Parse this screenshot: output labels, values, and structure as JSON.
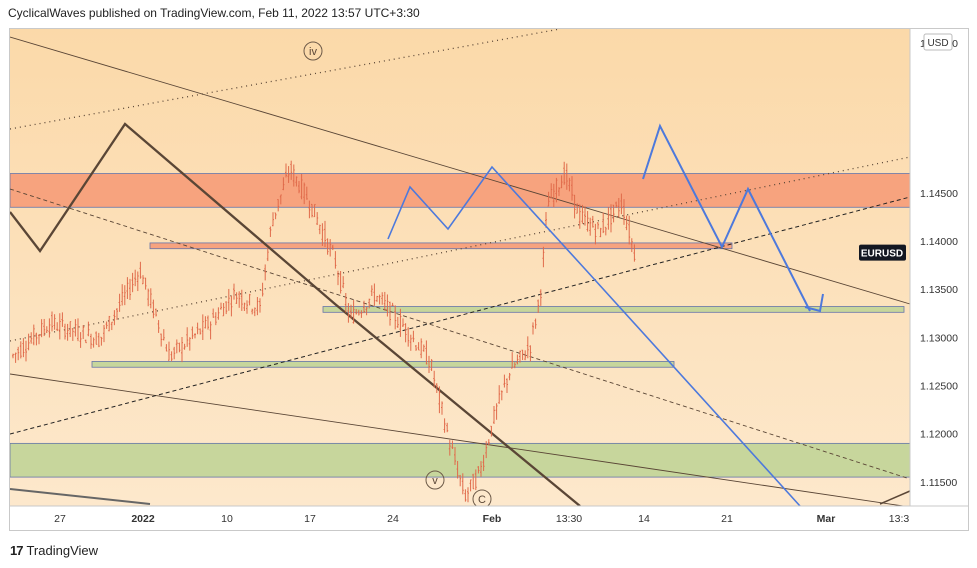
{
  "header": {
    "published": "CyclicalWaves published on TradingView.com, Feb 11, 2022 13:57 UTC+3:30"
  },
  "footer": {
    "brand": "TradingView",
    "logo_icon": "tradingview-logo-icon"
  },
  "chart_data": {
    "type": "candlestick",
    "symbol": "EURUSD",
    "currency": "USD",
    "price_axis": {
      "min": 1.1125,
      "max": 1.162,
      "ticks": [
        "1.11500",
        "1.12000",
        "1.12500",
        "1.13000",
        "1.13500",
        "1.14000",
        "1.14500"
      ],
      "top_label": "1.15000",
      "last_price_label": "EURUSD",
      "last_price": 1.1388
    },
    "time_axis": {
      "labels": [
        "27",
        "2022",
        "10",
        "17",
        "24",
        "Feb",
        "13:30",
        "14",
        "21",
        "Mar",
        "13:3"
      ]
    },
    "wave_labels": [
      "iv",
      "v",
      "C"
    ],
    "colors": {
      "background": "#fad9a8",
      "background_light": "#fde4c0",
      "resistance_zone": "#f7a07c",
      "support_zone": "#c5d69a",
      "candle": "#e06a4a",
      "projection": "#4d79dc",
      "trendline": "#5a4636",
      "price_label_bg": "#131722"
    },
    "zones": [
      {
        "kind": "resistance",
        "top": 1.147,
        "bottom": 1.1435
      },
      {
        "kind": "resistance",
        "top": 1.1398,
        "bottom": 1.1392
      },
      {
        "kind": "support",
        "top": 1.1332,
        "bottom": 1.1326
      },
      {
        "kind": "support",
        "top": 1.1275,
        "bottom": 1.1269
      },
      {
        "kind": "support",
        "top": 1.119,
        "bottom": 1.1155
      }
    ],
    "projection_path_price": [
      1.1385,
      1.143,
      1.1325,
      1.1375,
      1.1272
    ],
    "bullish_scenario_price": [
      1.1332,
      1.1375,
      1.134,
      1.1395,
      1.1275,
      1.12,
      1.111
    ]
  }
}
